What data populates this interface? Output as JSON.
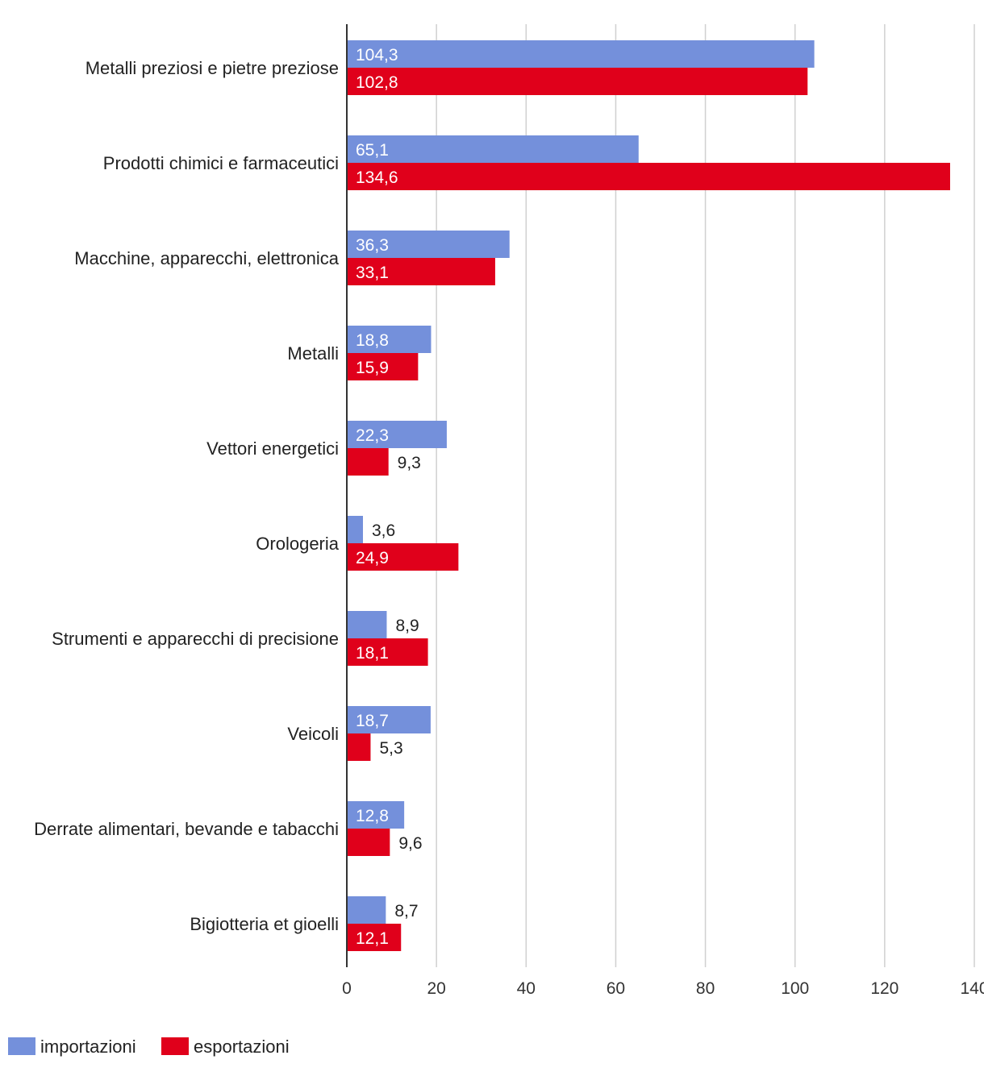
{
  "chart_data": {
    "type": "bar",
    "orientation": "horizontal",
    "categories": [
      "Metalli preziosi e pietre preziose",
      "Prodotti chimici e farmaceutici",
      "Macchine, apparecchi, elettronica",
      "Metalli",
      "Vettori energetici",
      "Orologeria",
      "Strumenti e apparecchi di precisione",
      "Veicoli",
      "Derrate alimentari, bevande e tabacchi",
      "Bigiotteria et gioelli"
    ],
    "series": [
      {
        "name": "importazioni",
        "color": "#7490db",
        "values": [
          104.3,
          65.1,
          36.3,
          18.8,
          22.3,
          3.6,
          8.9,
          18.7,
          12.8,
          8.7
        ],
        "labels": [
          "104,3",
          "65,1",
          "36,3",
          "18,8",
          "22,3",
          "3,6",
          "8,9",
          "18,7",
          "12,8",
          "8,7"
        ]
      },
      {
        "name": "esportazioni",
        "color": "#e0001b",
        "values": [
          102.8,
          134.6,
          33.1,
          15.9,
          9.3,
          24.9,
          18.1,
          5.3,
          9.6,
          12.1
        ],
        "labels": [
          "102,8",
          "134,6",
          "33,1",
          "15,9",
          "9,3",
          "24,9",
          "18,1",
          "5,3",
          "9,6",
          "12,1"
        ]
      }
    ],
    "xlim": [
      0,
      140
    ],
    "xticks": [
      0,
      20,
      40,
      60,
      80,
      100,
      120,
      140
    ],
    "xtick_labels": [
      "0",
      "20",
      "40",
      "60",
      "80",
      "100",
      "120",
      "140"
    ],
    "grid": true,
    "legend_position": "bottom-left",
    "gridline_color": "#d0d0d0",
    "axis_color": "#333333"
  }
}
